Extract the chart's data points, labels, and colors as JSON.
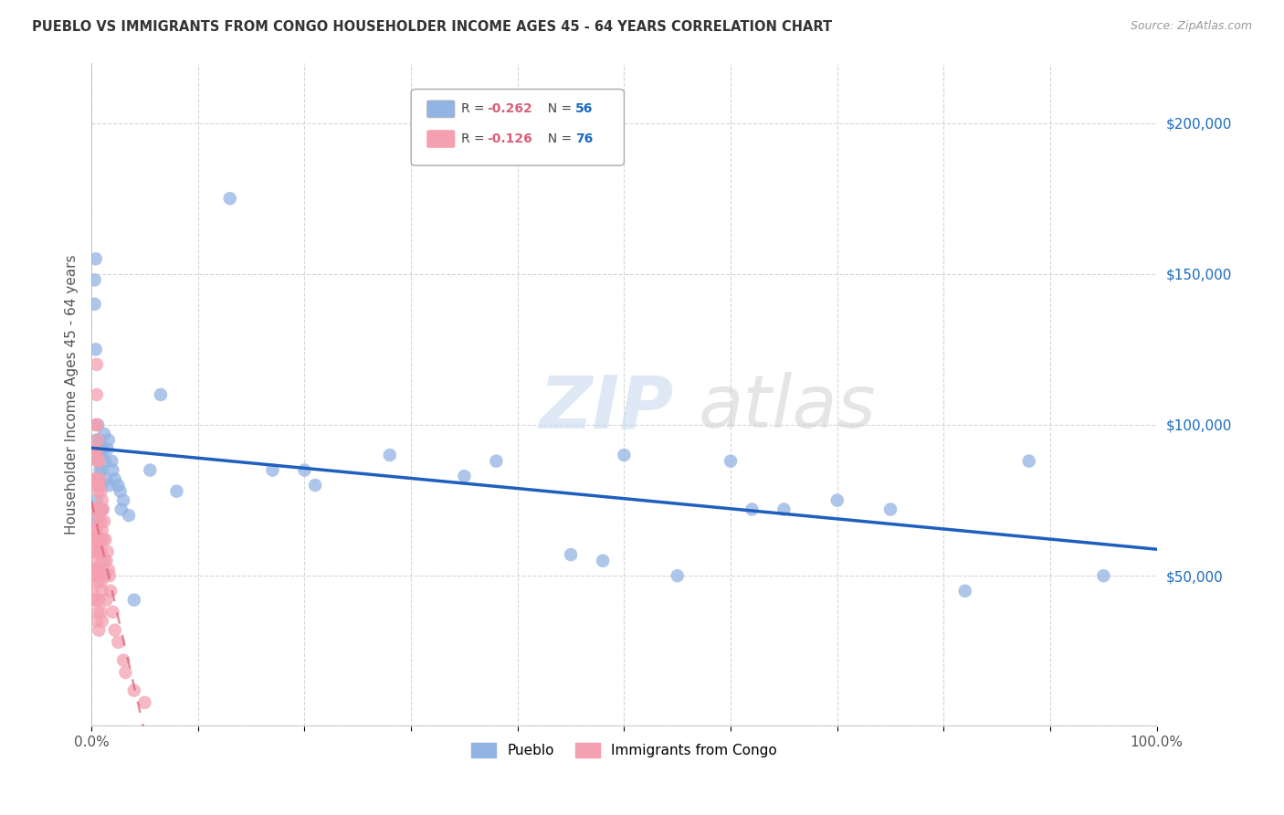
{
  "title": "PUEBLO VS IMMIGRANTS FROM CONGO HOUSEHOLDER INCOME AGES 45 - 64 YEARS CORRELATION CHART",
  "source": "Source: ZipAtlas.com",
  "ylabel": "Householder Income Ages 45 - 64 years",
  "xlim": [
    0.0,
    1.0
  ],
  "ylim": [
    0,
    220000
  ],
  "xticks": [
    0.0,
    0.1,
    0.2,
    0.3,
    0.4,
    0.5,
    0.6,
    0.7,
    0.8,
    0.9,
    1.0
  ],
  "xticklabels": [
    "0.0%",
    "",
    "",
    "",
    "",
    "",
    "",
    "",
    "",
    "",
    "100.0%"
  ],
  "ytick_positions": [
    0,
    50000,
    100000,
    150000,
    200000
  ],
  "ytick_labels": [
    "",
    "$50,000",
    "$100,000",
    "$150,000",
    "$200,000"
  ],
  "pueblo_color": "#92b4e3",
  "congo_color": "#f4a0b0",
  "pueblo_line_color": "#1f5fbd",
  "congo_line_color": "#d9607a",
  "legend_R_pueblo": "-0.262",
  "legend_N_pueblo": "56",
  "legend_R_congo": "-0.126",
  "legend_N_congo": "76",
  "pueblo_x": [
    0.003,
    0.003,
    0.004,
    0.004,
    0.005,
    0.005,
    0.005,
    0.005,
    0.005,
    0.006,
    0.006,
    0.007,
    0.008,
    0.008,
    0.009,
    0.009,
    0.01,
    0.01,
    0.011,
    0.012,
    0.013,
    0.014,
    0.015,
    0.016,
    0.017,
    0.019,
    0.02,
    0.022,
    0.025,
    0.027,
    0.028,
    0.03,
    0.035,
    0.04,
    0.055,
    0.065,
    0.08,
    0.13,
    0.17,
    0.2,
    0.21,
    0.28,
    0.35,
    0.38,
    0.45,
    0.48,
    0.5,
    0.55,
    0.6,
    0.62,
    0.65,
    0.7,
    0.75,
    0.82,
    0.88,
    0.95
  ],
  "pueblo_y": [
    148000,
    140000,
    155000,
    125000,
    95000,
    90000,
    82000,
    75000,
    68000,
    100000,
    88000,
    82000,
    95000,
    85000,
    90000,
    80000,
    85000,
    72000,
    92000,
    97000,
    88000,
    82000,
    92000,
    95000,
    80000,
    88000,
    85000,
    82000,
    80000,
    78000,
    72000,
    75000,
    70000,
    42000,
    85000,
    110000,
    78000,
    175000,
    85000,
    85000,
    80000,
    90000,
    83000,
    88000,
    57000,
    55000,
    90000,
    50000,
    88000,
    72000,
    72000,
    75000,
    72000,
    45000,
    88000,
    50000
  ],
  "congo_x": [
    0.001,
    0.001,
    0.002,
    0.002,
    0.002,
    0.002,
    0.002,
    0.003,
    0.003,
    0.003,
    0.003,
    0.003,
    0.004,
    0.004,
    0.004,
    0.004,
    0.004,
    0.004,
    0.005,
    0.005,
    0.005,
    0.005,
    0.005,
    0.005,
    0.005,
    0.005,
    0.005,
    0.005,
    0.005,
    0.006,
    0.006,
    0.006,
    0.006,
    0.006,
    0.006,
    0.006,
    0.007,
    0.007,
    0.007,
    0.007,
    0.007,
    0.007,
    0.007,
    0.008,
    0.008,
    0.008,
    0.008,
    0.009,
    0.009,
    0.009,
    0.009,
    0.009,
    0.01,
    0.01,
    0.01,
    0.01,
    0.01,
    0.011,
    0.011,
    0.012,
    0.012,
    0.013,
    0.013,
    0.014,
    0.014,
    0.015,
    0.016,
    0.017,
    0.018,
    0.02,
    0.022,
    0.025,
    0.03,
    0.032,
    0.04,
    0.05
  ],
  "congo_y": [
    55000,
    45000,
    72000,
    65000,
    58000,
    50000,
    42000,
    90000,
    82000,
    72000,
    62000,
    52000,
    100000,
    92000,
    82000,
    72000,
    62000,
    52000,
    120000,
    110000,
    100000,
    90000,
    80000,
    72000,
    65000,
    58000,
    50000,
    42000,
    35000,
    95000,
    88000,
    78000,
    68000,
    58000,
    48000,
    38000,
    88000,
    80000,
    72000,
    62000,
    52000,
    42000,
    32000,
    82000,
    72000,
    62000,
    52000,
    78000,
    68000,
    58000,
    48000,
    38000,
    75000,
    65000,
    55000,
    45000,
    35000,
    72000,
    62000,
    68000,
    55000,
    62000,
    50000,
    55000,
    42000,
    58000,
    52000,
    50000,
    45000,
    38000,
    32000,
    28000,
    22000,
    18000,
    12000,
    8000
  ]
}
